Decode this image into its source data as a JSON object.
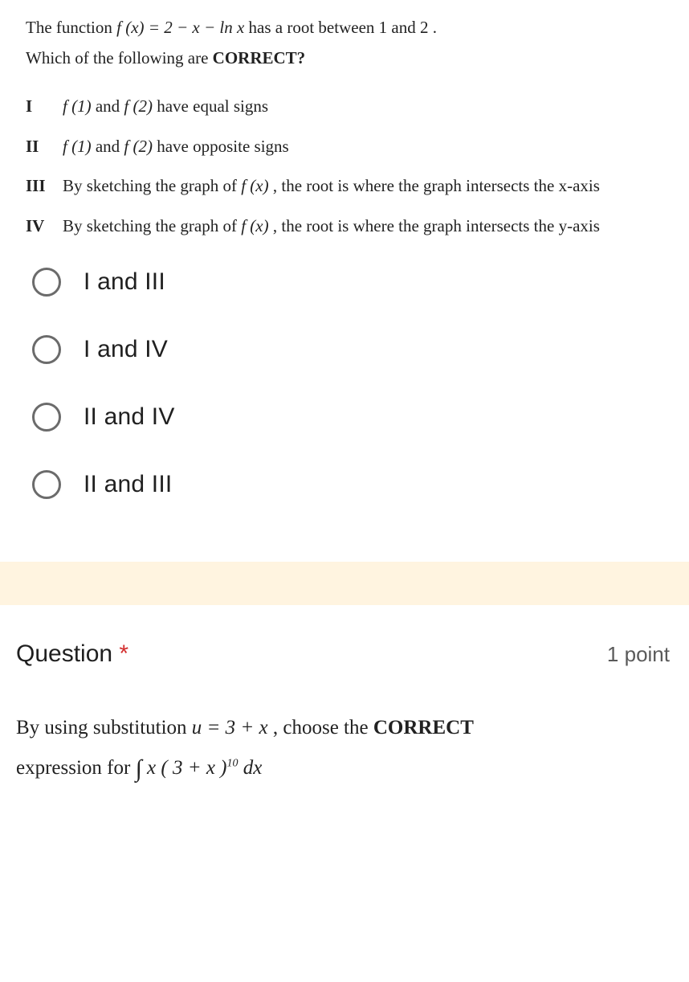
{
  "colors": {
    "text": "#222222",
    "radio_border": "#6b6b6b",
    "required": "#d32f2f",
    "points": "#5a5a5a",
    "band": "#fff4e0",
    "bg": "#ffffff"
  },
  "q1": {
    "stem_line1_pre": "The function ",
    "stem_line1_fx": "f (x) = 2 − x − ln x",
    "stem_line1_post": "  has a root between 1 and  2 .",
    "stem_line2_pre": "Which of the following are ",
    "stem_line2_bold": "CORRECT?",
    "statements": [
      {
        "num": "I",
        "pre": "",
        "fx1": "f (1)",
        "mid": " and ",
        "fx2": "f (2)",
        "post": " have equal signs"
      },
      {
        "num": "II",
        "pre": "",
        "fx1": "f (1)",
        "mid": " and ",
        "fx2": "f (2)",
        "post": " have opposite signs"
      },
      {
        "num": "III",
        "pre": "By sketching the graph of ",
        "fx1": "f (x)",
        "mid": "",
        "fx2": "",
        "post": " , the root is where the graph intersects the x-axis"
      },
      {
        "num": "IV",
        "pre": "By sketching the graph of ",
        "fx1": "f (x)",
        "mid": "",
        "fx2": "",
        "post": " , the root is where the graph intersects the y-axis"
      }
    ],
    "options": [
      "I and III",
      "I and IV",
      "II and IV",
      "II and III"
    ]
  },
  "q2": {
    "title": "Question ",
    "required": "*",
    "points": "1 point",
    "line1_pre": "By using substitution ",
    "line1_eq": "u = 3 + x",
    "line1_post": " , choose the ",
    "line1_bold": "CORRECT",
    "line2_pre": "expression for ",
    "line2_int": "∫",
    "line2_expr_a": "x ( 3 + x )",
    "line2_sup": "10",
    "line2_dx": " dx"
  }
}
